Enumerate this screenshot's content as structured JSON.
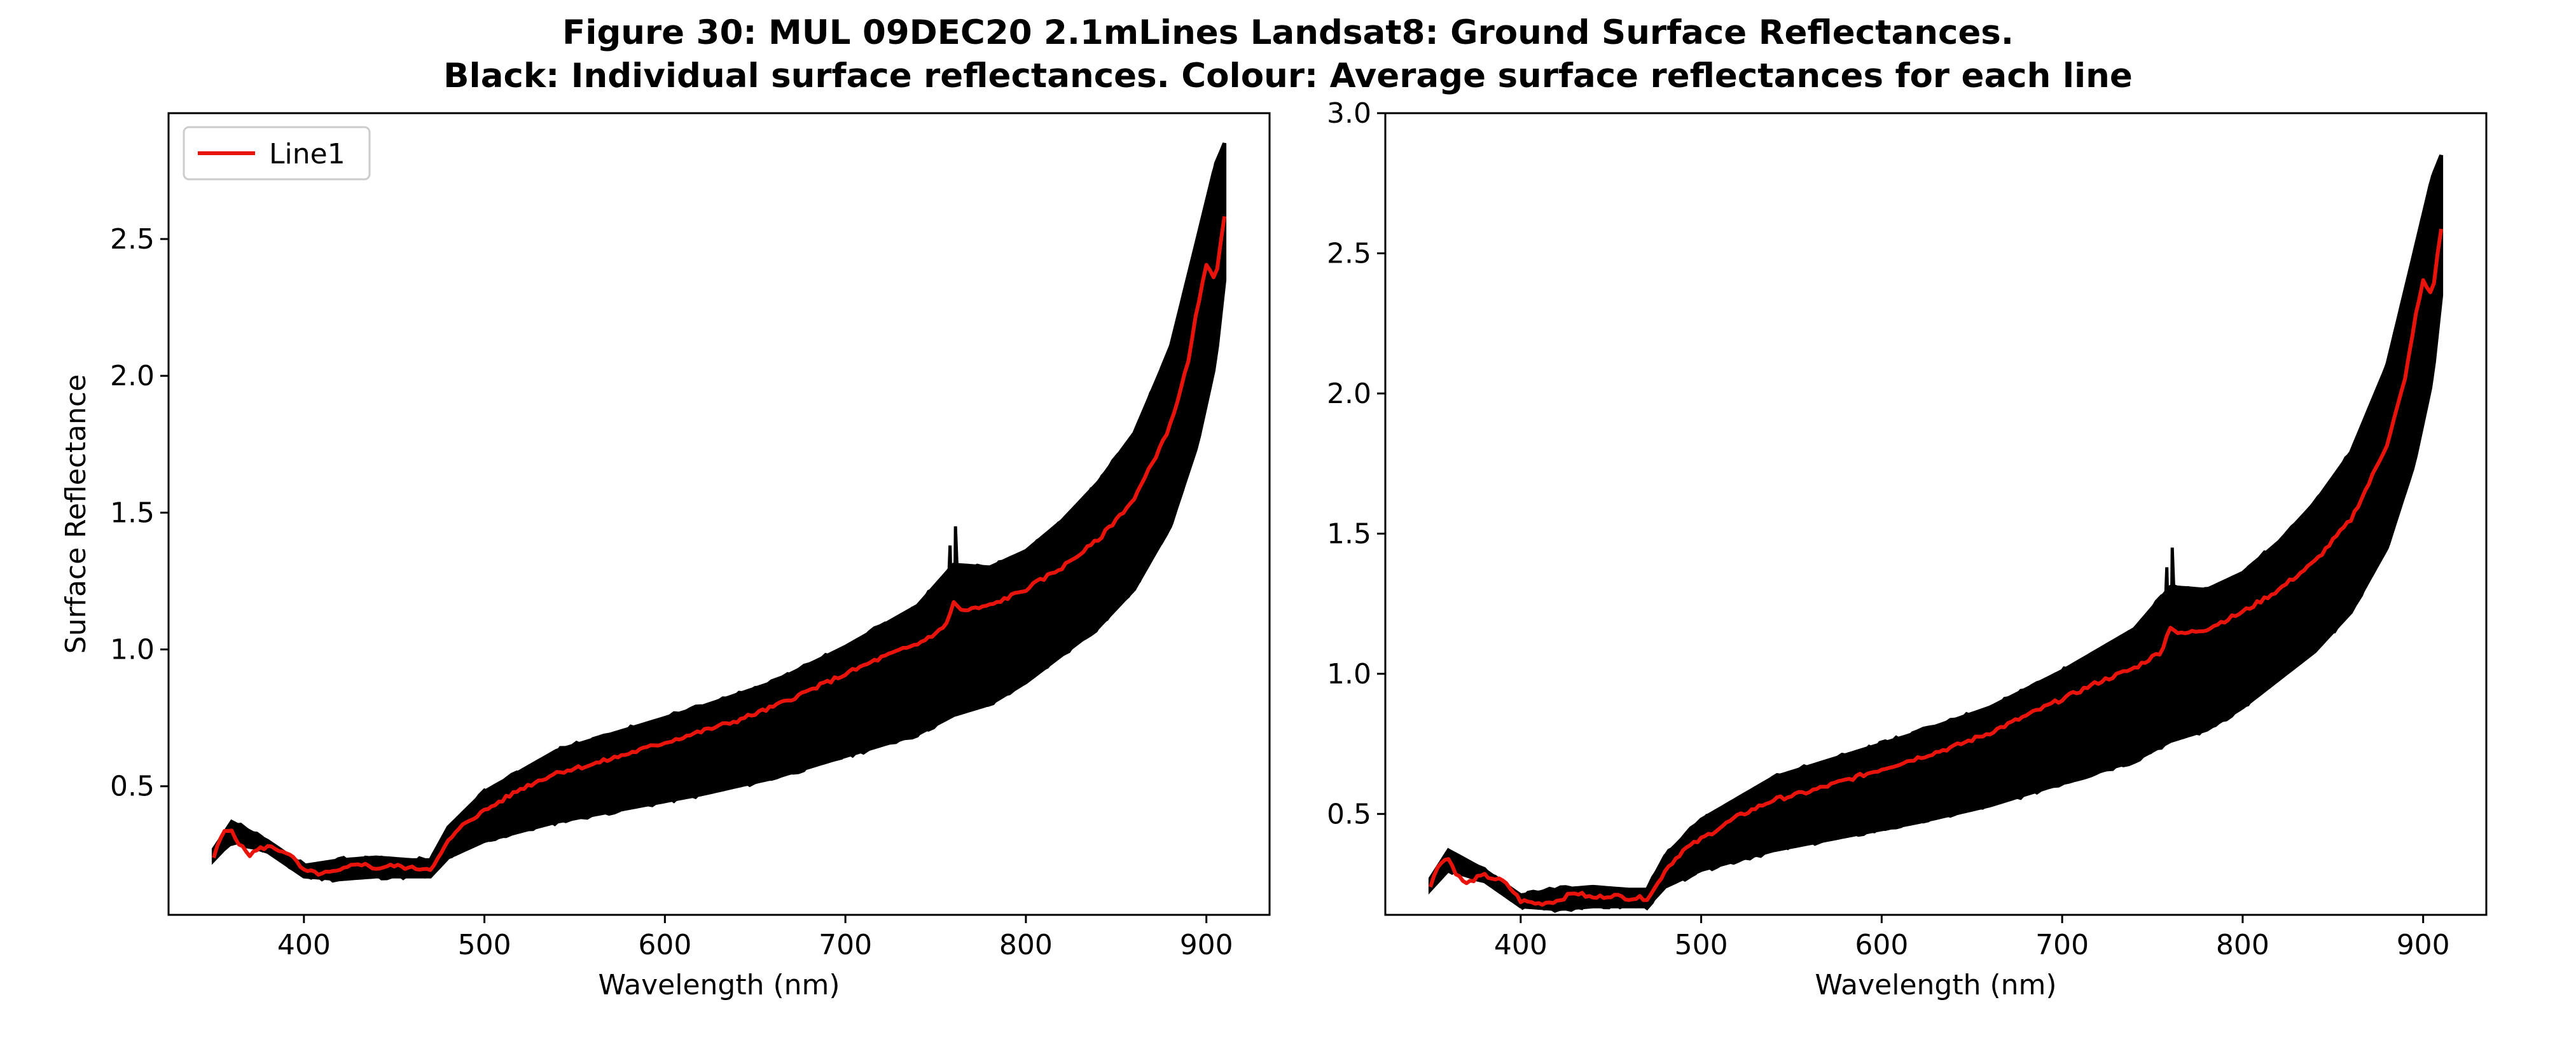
{
  "figure": {
    "title_line1": "Figure 30: MUL 09DEC20 2.1mLines Landsat8: Ground Surface Reflectances.",
    "title_line2": "Black: Individual surface reflectances. Colour: Average surface reflectances for each line"
  },
  "colors": {
    "individual": "#000000",
    "average": "#e8140c",
    "frame": "#000000",
    "background": "#ffffff"
  },
  "chart_data": [
    {
      "type": "line",
      "xlabel": "Wavelength (nm)",
      "ylabel": "Surface Reflectance",
      "xlim": [
        325,
        935
      ],
      "ylim": [
        0.03,
        2.96
      ],
      "xticks": [
        400,
        500,
        600,
        700,
        800,
        900
      ],
      "yticks": [
        0.5,
        1.0,
        1.5,
        2.0,
        2.5
      ],
      "legend": {
        "placement": "top-left",
        "entries": [
          "Line1"
        ]
      },
      "grid": false,
      "series": [
        {
          "name": "Line1",
          "role": "average",
          "x": [
            350,
            355,
            360,
            365,
            370,
            375,
            380,
            385,
            390,
            395,
            400,
            410,
            420,
            430,
            440,
            450,
            460,
            470,
            475,
            480,
            490,
            500,
            520,
            540,
            560,
            580,
            600,
            620,
            640,
            660,
            680,
            700,
            720,
            740,
            755,
            760,
            765,
            780,
            800,
            820,
            840,
            860,
            870,
            880,
            890,
            895,
            900,
            905,
            910
          ],
          "y": [
            0.24,
            0.33,
            0.34,
            0.28,
            0.25,
            0.27,
            0.28,
            0.27,
            0.26,
            0.23,
            0.19,
            0.18,
            0.19,
            0.22,
            0.2,
            0.21,
            0.2,
            0.2,
            0.24,
            0.3,
            0.37,
            0.41,
            0.49,
            0.55,
            0.58,
            0.62,
            0.66,
            0.7,
            0.74,
            0.79,
            0.85,
            0.91,
            0.97,
            1.02,
            1.08,
            1.17,
            1.14,
            1.16,
            1.22,
            1.3,
            1.4,
            1.55,
            1.68,
            1.82,
            2.05,
            2.25,
            2.4,
            2.35,
            2.59
          ]
        },
        {
          "name": "",
          "role": "individual-upper",
          "x": [
            350,
            360,
            380,
            400,
            420,
            440,
            460,
            470,
            480,
            500,
            540,
            580,
            620,
            660,
            700,
            740,
            760,
            780,
            800,
            820,
            840,
            860,
            880,
            895,
            905,
            910
          ],
          "y": [
            0.27,
            0.37,
            0.3,
            0.21,
            0.23,
            0.24,
            0.23,
            0.23,
            0.35,
            0.48,
            0.63,
            0.71,
            0.79,
            0.88,
            1.01,
            1.16,
            1.31,
            1.3,
            1.36,
            1.47,
            1.61,
            1.79,
            2.1,
            2.5,
            2.77,
            2.85
          ]
        },
        {
          "name": "",
          "role": "individual-lower",
          "x": [
            350,
            360,
            380,
            400,
            420,
            440,
            460,
            470,
            480,
            500,
            540,
            580,
            620,
            660,
            700,
            740,
            760,
            780,
            800,
            820,
            840,
            860,
            880,
            895,
            905,
            910
          ],
          "y": [
            0.23,
            0.3,
            0.26,
            0.17,
            0.16,
            0.17,
            0.17,
            0.17,
            0.24,
            0.3,
            0.37,
            0.42,
            0.47,
            0.53,
            0.61,
            0.69,
            0.76,
            0.8,
            0.88,
            0.98,
            1.08,
            1.22,
            1.45,
            1.75,
            2.05,
            2.35
          ]
        }
      ]
    },
    {
      "type": "line",
      "xlabel": "Wavelength (nm)",
      "ylabel": "",
      "xlim": [
        325,
        935
      ],
      "ylim": [
        0.14,
        3.0
      ],
      "xticks": [
        400,
        500,
        600,
        700,
        800,
        900
      ],
      "yticks": [
        0.5,
        1.0,
        1.5,
        2.0,
        2.5,
        3.0
      ],
      "grid": false,
      "series": [
        {
          "name": "",
          "role": "average",
          "x": [
            350,
            355,
            360,
            365,
            370,
            375,
            380,
            385,
            390,
            395,
            400,
            410,
            420,
            430,
            440,
            450,
            460,
            470,
            475,
            480,
            490,
            500,
            520,
            540,
            560,
            580,
            600,
            620,
            640,
            660,
            680,
            700,
            720,
            740,
            755,
            760,
            765,
            780,
            800,
            820,
            840,
            860,
            870,
            880,
            890,
            895,
            900,
            905,
            910
          ],
          "y": [
            0.24,
            0.33,
            0.34,
            0.28,
            0.25,
            0.27,
            0.28,
            0.27,
            0.26,
            0.23,
            0.19,
            0.18,
            0.19,
            0.22,
            0.2,
            0.21,
            0.2,
            0.2,
            0.24,
            0.3,
            0.37,
            0.41,
            0.49,
            0.55,
            0.58,
            0.62,
            0.66,
            0.7,
            0.74,
            0.79,
            0.85,
            0.91,
            0.97,
            1.02,
            1.08,
            1.17,
            1.14,
            1.16,
            1.22,
            1.3,
            1.4,
            1.55,
            1.68,
            1.82,
            2.05,
            2.25,
            2.4,
            2.35,
            2.59
          ]
        },
        {
          "name": "",
          "role": "individual-upper",
          "x": [
            350,
            360,
            380,
            400,
            420,
            440,
            460,
            470,
            480,
            500,
            540,
            580,
            620,
            660,
            700,
            740,
            760,
            780,
            800,
            820,
            840,
            860,
            880,
            895,
            905,
            910
          ],
          "y": [
            0.27,
            0.37,
            0.3,
            0.21,
            0.23,
            0.24,
            0.23,
            0.23,
            0.35,
            0.48,
            0.63,
            0.71,
            0.79,
            0.88,
            1.01,
            1.16,
            1.31,
            1.3,
            1.36,
            1.47,
            1.61,
            1.79,
            2.1,
            2.5,
            2.77,
            2.85
          ]
        },
        {
          "name": "",
          "role": "individual-lower",
          "x": [
            350,
            360,
            380,
            400,
            420,
            440,
            460,
            470,
            480,
            500,
            540,
            580,
            620,
            660,
            700,
            740,
            760,
            780,
            800,
            820,
            840,
            860,
            880,
            895,
            905,
            910
          ],
          "y": [
            0.23,
            0.3,
            0.26,
            0.17,
            0.16,
            0.17,
            0.17,
            0.17,
            0.24,
            0.3,
            0.37,
            0.42,
            0.47,
            0.53,
            0.61,
            0.69,
            0.76,
            0.8,
            0.88,
            0.98,
            1.08,
            1.22,
            1.45,
            1.75,
            2.05,
            2.35
          ]
        }
      ]
    }
  ]
}
